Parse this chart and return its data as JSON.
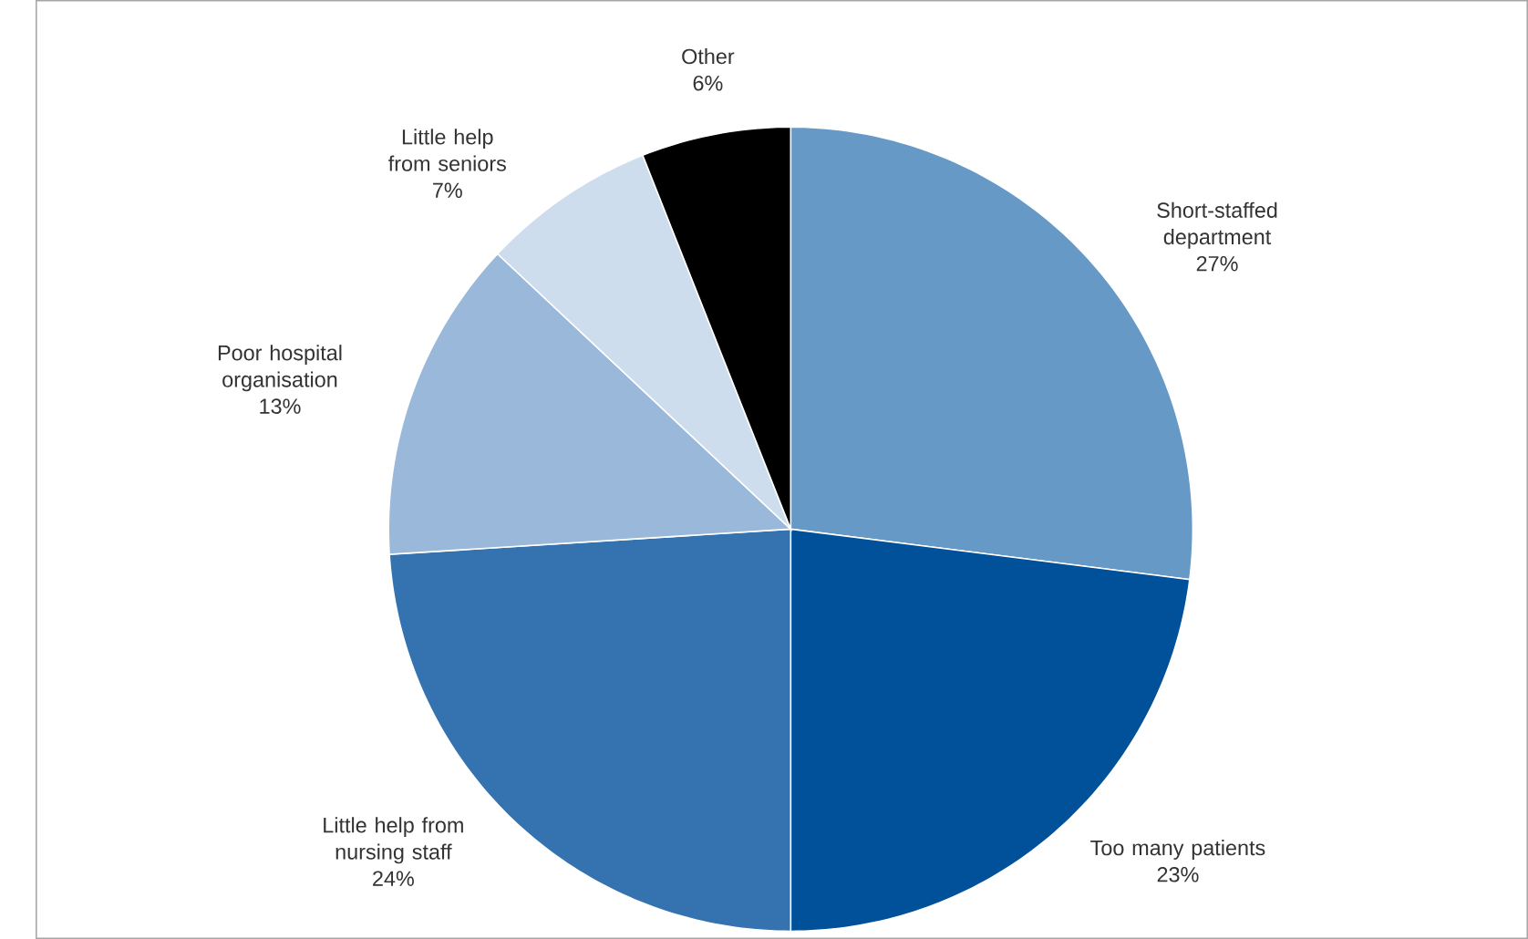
{
  "chart_data": {
    "type": "pie",
    "categories": [
      "Short-staffed department",
      "Too many patients",
      "Little help from nursing staff",
      "Poor hospital organisation",
      "Little help from seniors",
      "Other"
    ],
    "values": [
      27,
      23,
      24,
      13,
      7,
      6
    ],
    "colors": [
      "#6699c5",
      "#00509a",
      "#3573b0",
      "#9ab8d9",
      "#cdddee",
      "#000000"
    ],
    "value_labels": [
      "27%",
      "23%",
      "24%",
      "13%",
      "7%",
      "6%"
    ]
  }
}
